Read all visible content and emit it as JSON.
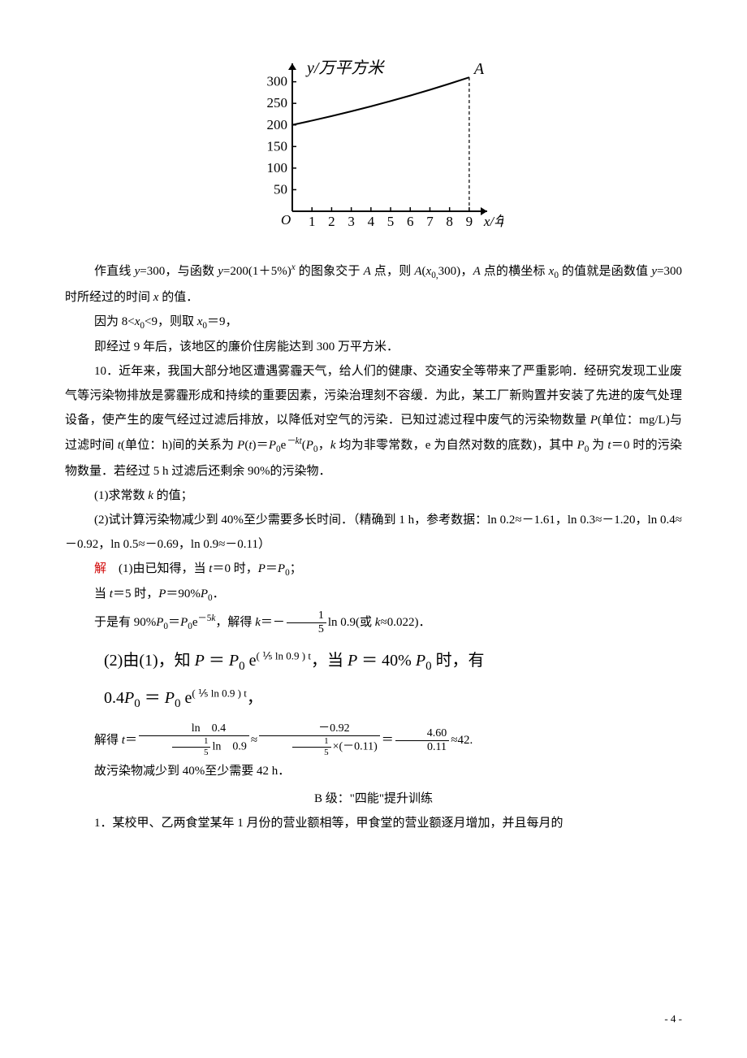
{
  "chart": {
    "type": "line",
    "title_y": "y/万平方米",
    "x_label_suffix": "x/年",
    "point_label": "A",
    "x_ticks": [
      1,
      2,
      3,
      4,
      5,
      6,
      7,
      8,
      9
    ],
    "y_ticks": [
      50,
      100,
      150,
      200,
      250,
      300
    ],
    "ylim": [
      0,
      320
    ],
    "xlim": [
      0,
      9.5
    ],
    "curve": [
      {
        "x": 0,
        "y": 200
      },
      {
        "x": 1,
        "y": 210
      },
      {
        "x": 2,
        "y": 220.5
      },
      {
        "x": 3,
        "y": 231.5
      },
      {
        "x": 4,
        "y": 243.1
      },
      {
        "x": 5,
        "y": 255.3
      },
      {
        "x": 6,
        "y": 268
      },
      {
        "x": 7,
        "y": 281.4
      },
      {
        "x": 8,
        "y": 295.5
      },
      {
        "x": 9,
        "y": 310.3
      }
    ],
    "dashed_x": 9,
    "font_family": "STKaiti, KaiTi, serif",
    "axis_color": "#000000",
    "curve_color": "#000000",
    "line_width": 2,
    "tick_fontsize": 17,
    "label_fontsize": 20
  },
  "p1a": "作直线 ",
  "p1b": "=300，与函数 ",
  "p1c": "=200(1＋5%)",
  "p1d": " 的图象交于 ",
  "p1e": " 点，则 ",
  "p1f": "(",
  "p1g": "300)，",
  "p1h": " 点的横坐标 ",
  "p1i": "的值就是函数值 ",
  "p1j": "=300 时所经过的时间 ",
  "p1k": " 的值．",
  "p2a": "因为 8<",
  "p2b": "<9，则取 ",
  "p2c": "＝9，",
  "p3": "即经过 9 年后，该地区的廉价住房能达到 300 万平方米．",
  "p4": "10．近年来，我国大部分地区遭遇雾霾天气，给人们的健康、交通安全等带来了严重影响．经研究发现工业废气等污染物排放是雾霾形成和持续的重要因素，污染治理刻不容缓．为此，某工厂新购置并安装了先进的废气处理设备，使产生的废气经过过滤后排放，以降低对空气的污染．已知过滤过程中废气的污染物数量 ",
  "p4b": "(单位：mg/L)与过滤时间 ",
  "p4c": "(单位：h)间的关系为 ",
  "p4d": "(",
  "p4e": ")＝",
  "p4f": "e",
  "p4g": "(",
  "p4h": "，",
  "p4i": " 均为非零常数，e 为自然对数的底数)，其中 ",
  "p4j": " 为 ",
  "p4k": "＝0 时的污染物数量．若经过 5 h 过滤后还剩余 90%的污染物．",
  "q1": "(1)求常数 ",
  "q1b": " 的值；",
  "q2": "(2)试计算污染物减少到 40%至少需要多长时间．（精确到 1 h，参考数据：ln 0.2≈－1.61，ln 0.3≈－1.20，ln 0.4≈－0.92，ln 0.5≈－0.69，ln 0.9≈－0.11）",
  "sol": "解",
  "s1a": "　(1)由已知得，当 ",
  "s1b": "＝0 时，",
  "s1c": "＝",
  "s1d": "；",
  "s2a": "当 ",
  "s2b": "＝5 时，",
  "s2c": "＝90%",
  "s2d": "．",
  "s3a": "于是有 90%",
  "s3b": "＝",
  "s3c": "e",
  "s3d": "，解得 ",
  "s3e": "＝－",
  "s3f": "ln 0.9(或 ",
  "s3g": "≈0.022)．",
  "frac15_num": "1",
  "frac15_den": "5",
  "formula2_line1_a": "(2)由(1)，知 ",
  "formula2_line1_b": " ＝ ",
  "formula2_line1_c": " e",
  "formula2_line1_exp": "( ⅕ ln 0.9 ) t",
  "formula2_line1_d": "，当 ",
  "formula2_line1_e": " ＝ 40% ",
  "formula2_line1_f": " 时，有",
  "formula2_line2_a": "0.4",
  "formula2_line2_b": " ＝ ",
  "formula2_line2_c": " e",
  "formula2_line2_exp": "( ⅕ ln 0.9 ) t",
  "formula2_line2_d": "，",
  "s4a": "解得 ",
  "s4eq": "＝",
  "fA_num": "ln　0.4",
  "fA_den_pre": "ln　0.9",
  "approx1": "≈",
  "fB_num": "－0.92",
  "fB_den_mid": "×(－0.11)",
  "eq2": "＝",
  "fC_num": "4.60",
  "fC_den": "0.11",
  "approx2": "≈42.",
  "s5": "故污染物减少到 40%至少需要 42 h．",
  "levelB": "B 级：\"四能\"提升训练",
  "p_last": "1．某校甲、乙两食堂某年 1 月份的营业额相等，甲食堂的营业额逐月增加，并且每月的",
  "pagenum": "- 4 -",
  "sym": {
    "y": "y",
    "x": "x",
    "A": "A",
    "x0": "x",
    "x0_sub": "0,",
    "x0_sub2": "0",
    "P": "P",
    "t": "t",
    "k": "k",
    "P0": "P",
    "P0_sub": "0",
    "minus_kt": "－kt"
  }
}
